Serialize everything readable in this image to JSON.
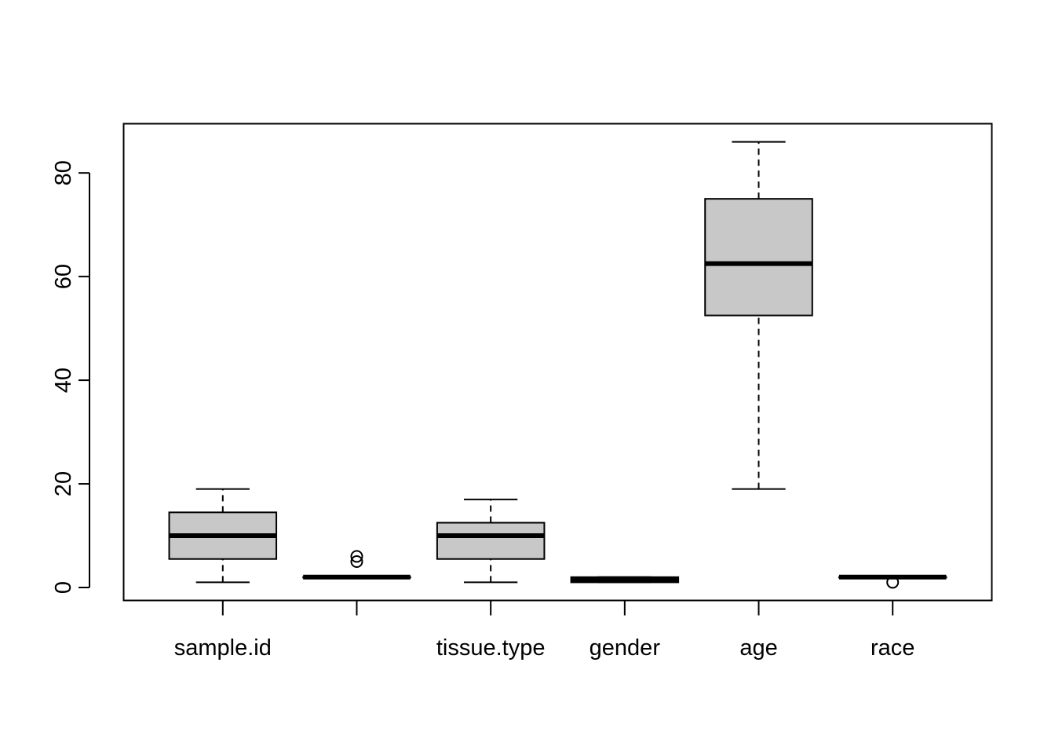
{
  "chart_data": {
    "type": "boxplot",
    "title": "",
    "xlabel": "",
    "ylabel": "",
    "ylim": [
      -2.5,
      89.5
    ],
    "y_ticks": [
      0,
      20,
      40,
      60,
      80
    ],
    "grid": false,
    "categories": [
      "sample.id",
      "",
      "tissue.type",
      "gender",
      "age",
      "race"
    ],
    "boxes": [
      {
        "whisker_low": 1,
        "q1": 5.5,
        "median": 10,
        "q3": 14.5,
        "whisker_high": 19,
        "outliers": []
      },
      {
        "whisker_low": 2,
        "q1": 2,
        "median": 2,
        "q3": 2,
        "whisker_high": 2,
        "outliers": [
          5,
          6
        ]
      },
      {
        "whisker_low": 1,
        "q1": 5.5,
        "median": 10,
        "q3": 12.5,
        "whisker_high": 17,
        "outliers": []
      },
      {
        "whisker_low": 1,
        "q1": 1,
        "median": 1.5,
        "q3": 2,
        "whisker_high": 2,
        "outliers": []
      },
      {
        "whisker_low": 19,
        "q1": 52.5,
        "median": 62.5,
        "q3": 75,
        "whisker_high": 86,
        "outliers": []
      },
      {
        "whisker_low": 2,
        "q1": 2,
        "median": 2,
        "q3": 2,
        "whisker_high": 2,
        "outliers": [
          1
        ]
      }
    ],
    "colors": {
      "box_fill": "#c8c8c8",
      "stroke": "#000000"
    }
  }
}
